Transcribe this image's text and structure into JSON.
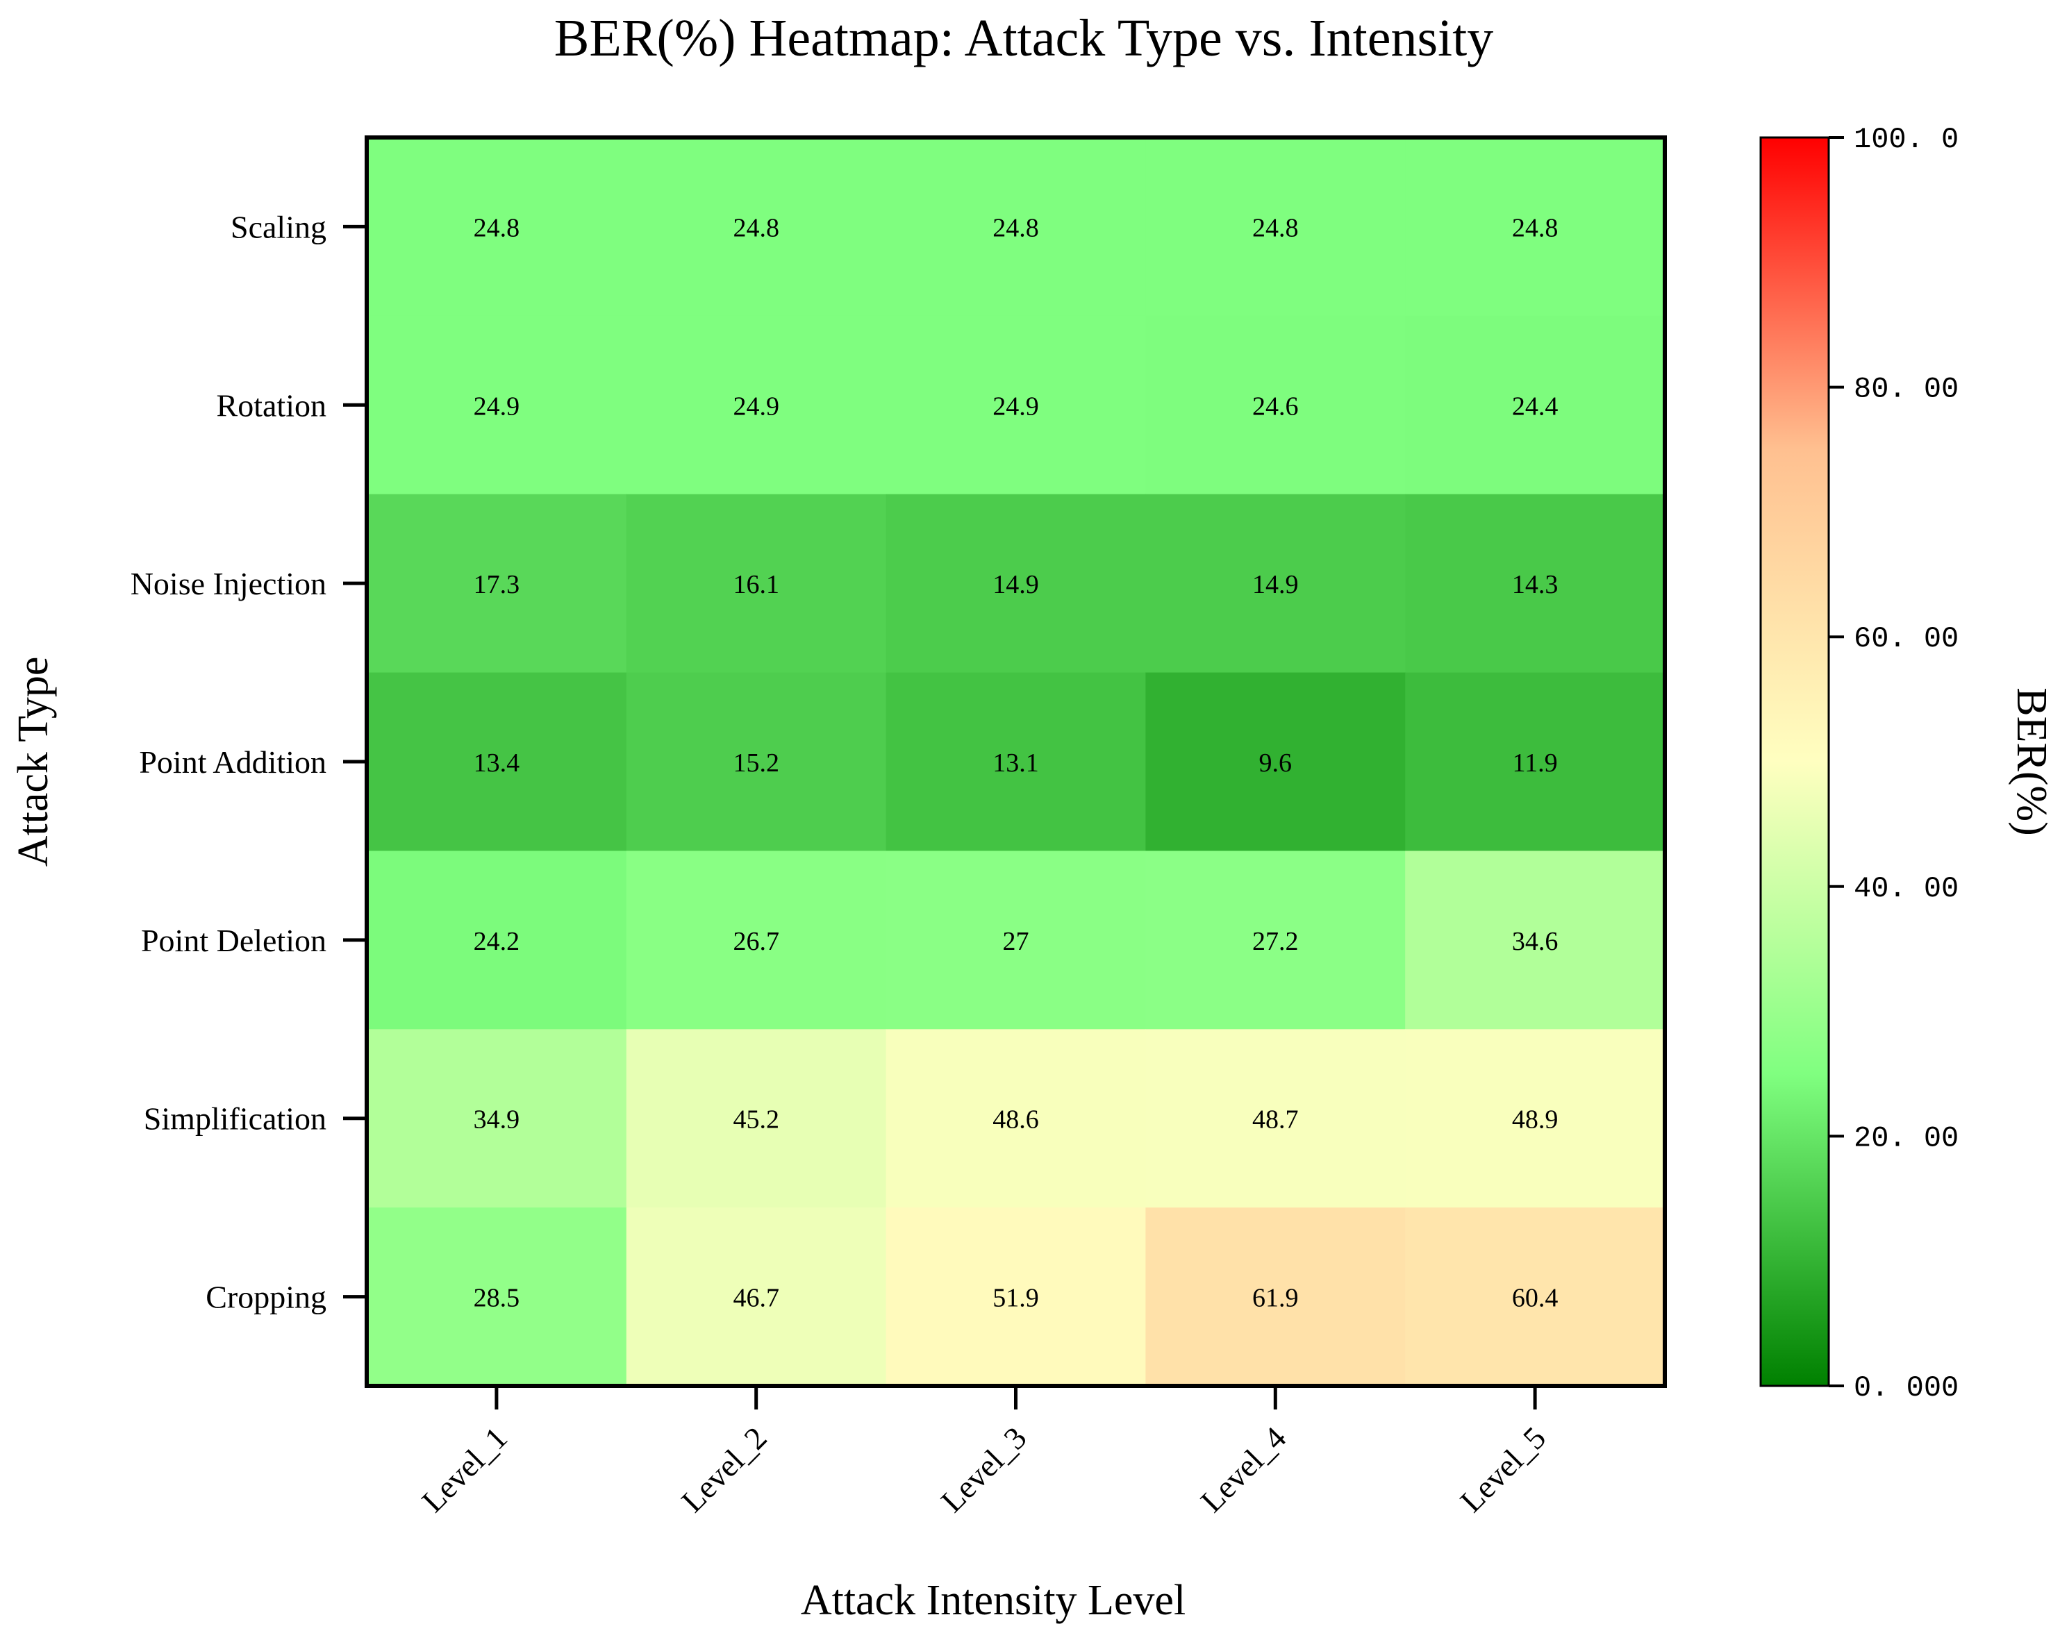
{
  "chart_data": {
    "type": "heatmap",
    "title": "BER(%)  Heatmap: Attack Type vs. Intensity",
    "xlabel": "Attack Intensity Level",
    "ylabel": "Attack Type",
    "x_categories": [
      "Level_1",
      "Level_2",
      "Level_3",
      "Level_4",
      "Level_5"
    ],
    "y_categories": [
      "Scaling",
      "Rotation",
      "Noise Injection",
      "Point Addition",
      "Point Deletion",
      "Simplification",
      "Cropping"
    ],
    "values": [
      [
        24.8,
        24.8,
        24.8,
        24.8,
        24.8
      ],
      [
        24.9,
        24.9,
        24.9,
        24.6,
        24.4
      ],
      [
        17.3,
        16.1,
        14.9,
        14.9,
        14.3
      ],
      [
        13.4,
        15.2,
        13.1,
        9.6,
        11.9
      ],
      [
        24.2,
        26.7,
        27,
        27.2,
        34.6
      ],
      [
        34.9,
        45.2,
        48.6,
        48.7,
        48.9
      ],
      [
        28.5,
        46.7,
        51.9,
        61.9,
        60.4
      ]
    ],
    "cell_labels": [
      [
        "24.8",
        "24.8",
        "24.8",
        "24.8",
        "24.8"
      ],
      [
        "24.9",
        "24.9",
        "24.9",
        "24.6",
        "24.4"
      ],
      [
        "17.3",
        "16.1",
        "14.9",
        "14.9",
        "14.3"
      ],
      [
        "13.4",
        "15.2",
        "13.1",
        "9.6",
        "11.9"
      ],
      [
        "24.2",
        "26.7",
        "27",
        "27.2",
        "34.6"
      ],
      [
        "34.9",
        "45.2",
        "48.6",
        "48.7",
        "48.9"
      ],
      [
        "28.5",
        "46.7",
        "51.9",
        "61.9",
        "60.4"
      ]
    ],
    "colorbar": {
      "label": "BER(%)",
      "range": [
        0,
        100
      ],
      "tick_values": [
        0,
        20,
        40,
        60,
        80,
        100
      ],
      "tick_labels": [
        "0. 000",
        "20. 00",
        "40. 00",
        "60. 00",
        "80. 00",
        "100. 0"
      ],
      "colormap": [
        "#008000",
        "#80ff80",
        "#ffffc0",
        "#ffc090",
        "#ff0000"
      ]
    },
    "grid": false
  }
}
